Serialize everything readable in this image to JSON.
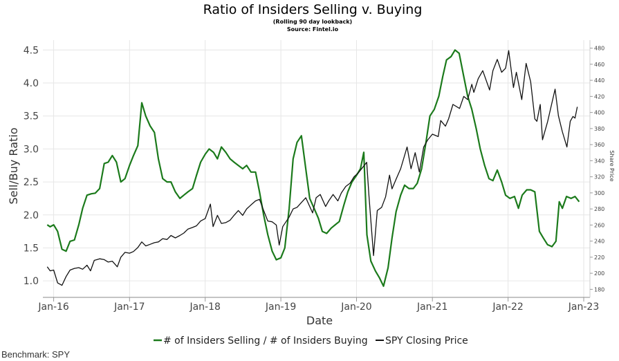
{
  "chart_data": {
    "type": "line",
    "title": "Ratio of Insiders Selling v. Buying",
    "subtitle_1": "(Rolling 90 day lookback)",
    "subtitle_2": "Source: Fintel.io",
    "xlabel": "Date",
    "ylabel": "Sell/Buy Ratio",
    "y2label": "Share Price",
    "x_ticks": [
      "Jan-16",
      "Jan-17",
      "Jan-18",
      "Jan-19",
      "Jan-20",
      "Jan-21",
      "Jan-22",
      "Jan-23"
    ],
    "x_range": [
      "2015-11-10",
      "2023-01-31"
    ],
    "ylim": [
      0.75,
      4.65
    ],
    "y_ticks": [
      "1.0",
      "1.5",
      "2.0",
      "2.5",
      "3.0",
      "3.5",
      "4.0",
      "4.5"
    ],
    "y2lim": [
      170,
      490
    ],
    "y2_ticks": [
      "180",
      "200",
      "220",
      "240",
      "260",
      "280",
      "300",
      "320",
      "340",
      "360",
      "380",
      "400",
      "420",
      "440",
      "460",
      "480"
    ],
    "grid": true,
    "legend_position": "bottom",
    "series": [
      {
        "name": "# of Insiders Selling / # of Insiders Buying",
        "color": "#1b7a1b",
        "axis": "left",
        "points": [
          [
            "2015-12-01",
            1.85
          ],
          [
            "2015-12-15",
            1.82
          ],
          [
            "2016-01-01",
            1.85
          ],
          [
            "2016-01-20",
            1.75
          ],
          [
            "2016-02-10",
            1.48
          ],
          [
            "2016-03-01",
            1.45
          ],
          [
            "2016-03-20",
            1.6
          ],
          [
            "2016-04-10",
            1.62
          ],
          [
            "2016-05-01",
            1.85
          ],
          [
            "2016-05-20",
            2.1
          ],
          [
            "2016-06-10",
            2.3
          ],
          [
            "2016-07-01",
            2.32
          ],
          [
            "2016-07-20",
            2.33
          ],
          [
            "2016-08-10",
            2.4
          ],
          [
            "2016-09-01",
            2.78
          ],
          [
            "2016-09-20",
            2.8
          ],
          [
            "2016-10-10",
            2.9
          ],
          [
            "2016-10-30",
            2.8
          ],
          [
            "2016-11-20",
            2.5
          ],
          [
            "2016-12-10",
            2.55
          ],
          [
            "2017-01-01",
            2.75
          ],
          [
            "2017-01-20",
            2.9
          ],
          [
            "2017-02-10",
            3.05
          ],
          [
            "2017-03-01",
            3.7
          ],
          [
            "2017-03-20",
            3.5
          ],
          [
            "2017-04-10",
            3.35
          ],
          [
            "2017-05-01",
            3.25
          ],
          [
            "2017-05-20",
            2.85
          ],
          [
            "2017-06-10",
            2.55
          ],
          [
            "2017-07-01",
            2.5
          ],
          [
            "2017-07-20",
            2.5
          ],
          [
            "2017-08-10",
            2.35
          ],
          [
            "2017-09-01",
            2.25
          ],
          [
            "2017-09-20",
            2.3
          ],
          [
            "2017-10-10",
            2.35
          ],
          [
            "2017-11-01",
            2.4
          ],
          [
            "2017-11-20",
            2.6
          ],
          [
            "2017-12-10",
            2.8
          ],
          [
            "2018-01-01",
            2.92
          ],
          [
            "2018-01-20",
            3.0
          ],
          [
            "2018-02-10",
            2.95
          ],
          [
            "2018-03-01",
            2.85
          ],
          [
            "2018-03-20",
            3.03
          ],
          [
            "2018-04-10",
            2.95
          ],
          [
            "2018-05-01",
            2.85
          ],
          [
            "2018-05-20",
            2.8
          ],
          [
            "2018-06-10",
            2.75
          ],
          [
            "2018-07-01",
            2.7
          ],
          [
            "2018-07-20",
            2.75
          ],
          [
            "2018-08-10",
            2.65
          ],
          [
            "2018-09-01",
            2.65
          ],
          [
            "2018-09-20",
            2.35
          ],
          [
            "2018-10-10",
            2.0
          ],
          [
            "2018-10-30",
            1.7
          ],
          [
            "2018-11-20",
            1.45
          ],
          [
            "2018-12-10",
            1.32
          ],
          [
            "2019-01-01",
            1.35
          ],
          [
            "2019-01-20",
            1.5
          ],
          [
            "2019-02-10",
            2.1
          ],
          [
            "2019-03-01",
            2.85
          ],
          [
            "2019-03-20",
            3.1
          ],
          [
            "2019-04-10",
            3.2
          ],
          [
            "2019-05-01",
            2.7
          ],
          [
            "2019-05-20",
            2.25
          ],
          [
            "2019-06-10",
            2.1
          ],
          [
            "2019-07-01",
            1.95
          ],
          [
            "2019-07-20",
            1.75
          ],
          [
            "2019-08-10",
            1.72
          ],
          [
            "2019-09-01",
            1.8
          ],
          [
            "2019-09-20",
            1.85
          ],
          [
            "2019-10-10",
            1.9
          ],
          [
            "2019-11-01",
            2.15
          ],
          [
            "2019-11-20",
            2.35
          ],
          [
            "2019-12-10",
            2.5
          ],
          [
            "2020-01-01",
            2.6
          ],
          [
            "2020-01-20",
            2.7
          ],
          [
            "2020-02-05",
            2.95
          ],
          [
            "2020-02-20",
            1.7
          ],
          [
            "2020-03-10",
            1.3
          ],
          [
            "2020-04-01",
            1.15
          ],
          [
            "2020-04-20",
            1.05
          ],
          [
            "2020-05-10",
            0.92
          ],
          [
            "2020-06-01",
            1.2
          ],
          [
            "2020-06-20",
            1.65
          ],
          [
            "2020-07-10",
            2.05
          ],
          [
            "2020-08-01",
            2.3
          ],
          [
            "2020-08-20",
            2.45
          ],
          [
            "2020-09-10",
            2.4
          ],
          [
            "2020-10-01",
            2.4
          ],
          [
            "2020-10-20",
            2.48
          ],
          [
            "2020-11-10",
            2.7
          ],
          [
            "2020-12-01",
            3.1
          ],
          [
            "2020-12-20",
            3.5
          ],
          [
            "2021-01-10",
            3.6
          ],
          [
            "2021-02-01",
            3.8
          ],
          [
            "2021-02-20",
            4.1
          ],
          [
            "2021-03-10",
            4.35
          ],
          [
            "2021-04-01",
            4.4
          ],
          [
            "2021-04-20",
            4.5
          ],
          [
            "2021-05-10",
            4.45
          ],
          [
            "2021-06-01",
            4.1
          ],
          [
            "2021-06-20",
            3.8
          ],
          [
            "2021-07-10",
            3.6
          ],
          [
            "2021-08-01",
            3.3
          ],
          [
            "2021-08-20",
            3.0
          ],
          [
            "2021-09-10",
            2.75
          ],
          [
            "2021-10-01",
            2.55
          ],
          [
            "2021-10-20",
            2.52
          ],
          [
            "2021-11-10",
            2.68
          ],
          [
            "2021-12-01",
            2.5
          ],
          [
            "2021-12-20",
            2.3
          ],
          [
            "2022-01-10",
            2.25
          ],
          [
            "2022-02-01",
            2.28
          ],
          [
            "2022-02-20",
            2.1
          ],
          [
            "2022-03-10",
            2.3
          ],
          [
            "2022-04-01",
            2.38
          ],
          [
            "2022-04-20",
            2.38
          ],
          [
            "2022-05-10",
            2.35
          ],
          [
            "2022-06-01",
            1.75
          ],
          [
            "2022-06-20",
            1.65
          ],
          [
            "2022-07-10",
            1.55
          ],
          [
            "2022-08-01",
            1.52
          ],
          [
            "2022-08-20",
            1.6
          ],
          [
            "2022-09-05",
            2.2
          ],
          [
            "2022-09-20",
            2.1
          ],
          [
            "2022-10-10",
            2.28
          ],
          [
            "2022-11-01",
            2.25
          ],
          [
            "2022-11-20",
            2.28
          ],
          [
            "2022-12-10",
            2.2
          ]
        ]
      },
      {
        "name": "SPY Closing Price",
        "color": "#111111",
        "axis": "right",
        "points": [
          [
            "2015-12-01",
            208
          ],
          [
            "2015-12-15",
            203
          ],
          [
            "2016-01-01",
            204
          ],
          [
            "2016-01-20",
            188
          ],
          [
            "2016-02-10",
            185
          ],
          [
            "2016-03-01",
            196
          ],
          [
            "2016-03-20",
            204
          ],
          [
            "2016-04-10",
            206
          ],
          [
            "2016-05-01",
            207
          ],
          [
            "2016-05-20",
            205
          ],
          [
            "2016-06-10",
            210
          ],
          [
            "2016-06-27",
            203
          ],
          [
            "2016-07-15",
            216
          ],
          [
            "2016-08-10",
            218
          ],
          [
            "2016-09-01",
            217
          ],
          [
            "2016-09-20",
            214
          ],
          [
            "2016-10-10",
            215
          ],
          [
            "2016-11-03",
            208
          ],
          [
            "2016-11-20",
            220
          ],
          [
            "2016-12-10",
            226
          ],
          [
            "2017-01-01",
            225
          ],
          [
            "2017-01-20",
            227
          ],
          [
            "2017-02-10",
            232
          ],
          [
            "2017-03-01",
            239
          ],
          [
            "2017-03-20",
            234
          ],
          [
            "2017-04-10",
            236
          ],
          [
            "2017-05-01",
            238
          ],
          [
            "2017-05-20",
            239
          ],
          [
            "2017-06-10",
            243
          ],
          [
            "2017-07-01",
            242
          ],
          [
            "2017-07-20",
            247
          ],
          [
            "2017-08-10",
            244
          ],
          [
            "2017-09-01",
            247
          ],
          [
            "2017-09-20",
            250
          ],
          [
            "2017-10-10",
            255
          ],
          [
            "2017-11-01",
            257
          ],
          [
            "2017-11-20",
            259
          ],
          [
            "2017-12-10",
            265
          ],
          [
            "2018-01-01",
            268
          ],
          [
            "2018-01-26",
            286
          ],
          [
            "2018-02-08",
            258
          ],
          [
            "2018-03-01",
            272
          ],
          [
            "2018-03-20",
            262
          ],
          [
            "2018-04-10",
            263
          ],
          [
            "2018-05-01",
            266
          ],
          [
            "2018-05-20",
            272
          ],
          [
            "2018-06-10",
            278
          ],
          [
            "2018-07-01",
            272
          ],
          [
            "2018-07-20",
            280
          ],
          [
            "2018-08-10",
            285
          ],
          [
            "2018-09-01",
            290
          ],
          [
            "2018-09-20",
            292
          ],
          [
            "2018-10-10",
            278
          ],
          [
            "2018-10-30",
            265
          ],
          [
            "2018-11-20",
            264
          ],
          [
            "2018-12-10",
            260
          ],
          [
            "2018-12-24",
            235
          ],
          [
            "2019-01-10",
            258
          ],
          [
            "2019-02-10",
            270
          ],
          [
            "2019-03-01",
            280
          ],
          [
            "2019-03-20",
            282
          ],
          [
            "2019-04-10",
            288
          ],
          [
            "2019-05-01",
            294
          ],
          [
            "2019-06-03",
            275
          ],
          [
            "2019-06-20",
            294
          ],
          [
            "2019-07-10",
            298
          ],
          [
            "2019-08-05",
            283
          ],
          [
            "2019-08-20",
            290
          ],
          [
            "2019-09-10",
            298
          ],
          [
            "2019-10-03",
            290
          ],
          [
            "2019-10-20",
            300
          ],
          [
            "2019-11-10",
            308
          ],
          [
            "2019-12-01",
            312
          ],
          [
            "2019-12-20",
            320
          ],
          [
            "2020-01-10",
            325
          ],
          [
            "2020-02-19",
            338
          ],
          [
            "2020-03-01",
            296
          ],
          [
            "2020-03-23",
            222
          ],
          [
            "2020-04-10",
            278
          ],
          [
            "2020-05-01",
            282
          ],
          [
            "2020-05-20",
            295
          ],
          [
            "2020-06-08",
            322
          ],
          [
            "2020-06-20",
            305
          ],
          [
            "2020-07-10",
            317
          ],
          [
            "2020-08-01",
            330
          ],
          [
            "2020-09-01",
            357
          ],
          [
            "2020-09-20",
            330
          ],
          [
            "2020-10-10",
            350
          ],
          [
            "2020-10-30",
            326
          ],
          [
            "2020-11-20",
            357
          ],
          [
            "2020-12-10",
            366
          ],
          [
            "2021-01-01",
            373
          ],
          [
            "2021-01-29",
            370
          ],
          [
            "2021-02-10",
            390
          ],
          [
            "2021-03-05",
            383
          ],
          [
            "2021-03-20",
            392
          ],
          [
            "2021-04-10",
            410
          ],
          [
            "2021-05-12",
            405
          ],
          [
            "2021-06-01",
            420
          ],
          [
            "2021-06-20",
            416
          ],
          [
            "2021-07-10",
            435
          ],
          [
            "2021-07-20",
            425
          ],
          [
            "2021-08-10",
            442
          ],
          [
            "2021-09-01",
            452
          ],
          [
            "2021-10-04",
            428
          ],
          [
            "2021-10-20",
            452
          ],
          [
            "2021-11-10",
            466
          ],
          [
            "2021-12-01",
            450
          ],
          [
            "2021-12-20",
            455
          ],
          [
            "2022-01-04",
            477
          ],
          [
            "2022-01-27",
            431
          ],
          [
            "2022-02-10",
            450
          ],
          [
            "2022-03-08",
            416
          ],
          [
            "2022-03-29",
            461
          ],
          [
            "2022-04-20",
            438
          ],
          [
            "2022-05-10",
            392
          ],
          [
            "2022-05-20",
            389
          ],
          [
            "2022-06-05",
            410
          ],
          [
            "2022-06-16",
            366
          ],
          [
            "2022-07-10",
            388
          ],
          [
            "2022-08-16",
            429
          ],
          [
            "2022-09-01",
            396
          ],
          [
            "2022-09-20",
            376
          ],
          [
            "2022-10-12",
            357
          ],
          [
            "2022-10-28",
            389
          ],
          [
            "2022-11-10",
            395
          ],
          [
            "2022-11-20",
            393
          ],
          [
            "2022-12-01",
            407
          ]
        ]
      }
    ]
  },
  "legend_items": [
    {
      "label": "# of Insiders Selling / # of Insiders Buying",
      "color": "#1b7a1b"
    },
    {
      "label": "SPY Closing Price",
      "color": "#111111"
    }
  ],
  "footer": {
    "benchmark": "Benchmark: SPY"
  }
}
